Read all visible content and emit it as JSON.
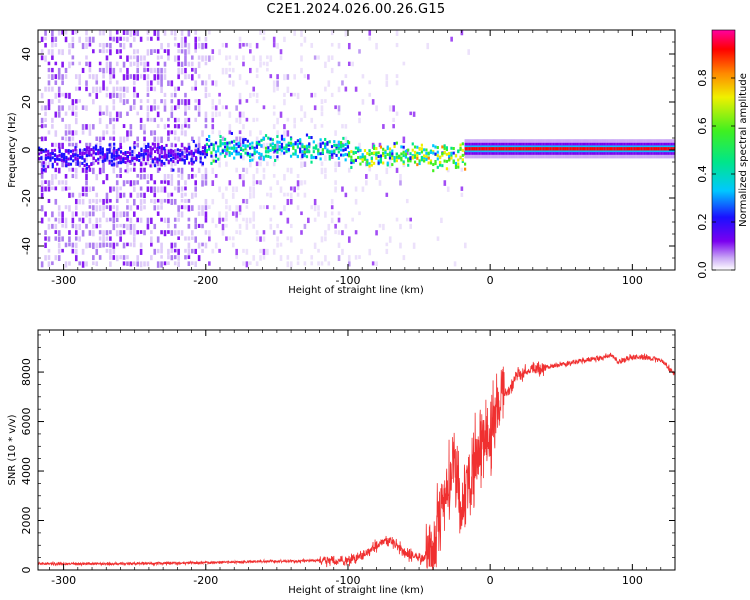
{
  "title": "C2E1.2024.026.00.26.G15",
  "colors": {
    "snr_line": "#f03030",
    "colormap": [
      "#ffffff",
      "#c9a8f5",
      "#7a00f0",
      "#1a10ff",
      "#00c8ff",
      "#00e68a",
      "#40f020",
      "#f0f000",
      "#ff8800",
      "#ff0000",
      "#ff00a0"
    ]
  },
  "chart_data": [
    {
      "type": "heatmap",
      "title": "C2E1.2024.026.00.26.G15",
      "xlabel": "Height of straight line (km)",
      "ylabel": "Frequency (Hz)",
      "xlim": [
        -318,
        130
      ],
      "ylim": [
        -50,
        50
      ],
      "x_ticks": [
        -300,
        -200,
        -100,
        0,
        100
      ],
      "y_ticks": [
        40,
        20,
        0,
        -20,
        -40
      ],
      "colorbar": {
        "label": "Normalized spectral amplitude",
        "range": [
          0.0,
          1.0
        ],
        "ticks": [
          0.0,
          0.2,
          0.4,
          0.6,
          0.8
        ]
      },
      "signal_band": [
        {
          "x_range": [
            -318,
            -200
          ],
          "center_hz": -3,
          "halfwidth_hz": 4,
          "amplitude": 0.15
        },
        {
          "x_range": [
            -200,
            -100
          ],
          "center_hz": 0,
          "halfwidth_hz": 4,
          "amplitude": 0.35
        },
        {
          "x_range": [
            -100,
            -18
          ],
          "center_hz": -3,
          "halfwidth_hz": 4,
          "amplitude": 0.55
        },
        {
          "x_range": [
            -18,
            130
          ],
          "center_hz": 0.5,
          "halfwidth_hz": 2,
          "amplitude": 0.95
        }
      ]
    },
    {
      "type": "line",
      "xlabel": "Height of straight line (km)",
      "ylabel": "SNR (10 * v/v)",
      "xlim": [
        -318,
        130
      ],
      "ylim": [
        0,
        9700
      ],
      "x_ticks": [
        -300,
        -200,
        -100,
        0,
        100
      ],
      "y_ticks": [
        0,
        2000,
        4000,
        6000,
        8000
      ],
      "series": [
        {
          "x": [
            -318,
            -300,
            -250,
            -200,
            -150,
            -120,
            -100,
            -90,
            -80,
            -70,
            -60,
            -50,
            -40,
            -35,
            -30,
            -25,
            -20,
            -15,
            -10,
            -5,
            0,
            5,
            10,
            15,
            20,
            30,
            40,
            50,
            60,
            70,
            80,
            85,
            90,
            95,
            100,
            110,
            120,
            130
          ],
          "y": [
            250,
            250,
            260,
            300,
            350,
            380,
            380,
            600,
            1000,
            1200,
            700,
            450,
            500,
            2000,
            3500,
            4500,
            2200,
            3800,
            4500,
            5000,
            5500,
            6400,
            7000,
            7500,
            7900,
            8100,
            8200,
            8300,
            8400,
            8500,
            8600,
            8700,
            8400,
            8500,
            8600,
            8600,
            8500,
            7900
          ]
        }
      ]
    }
  ]
}
